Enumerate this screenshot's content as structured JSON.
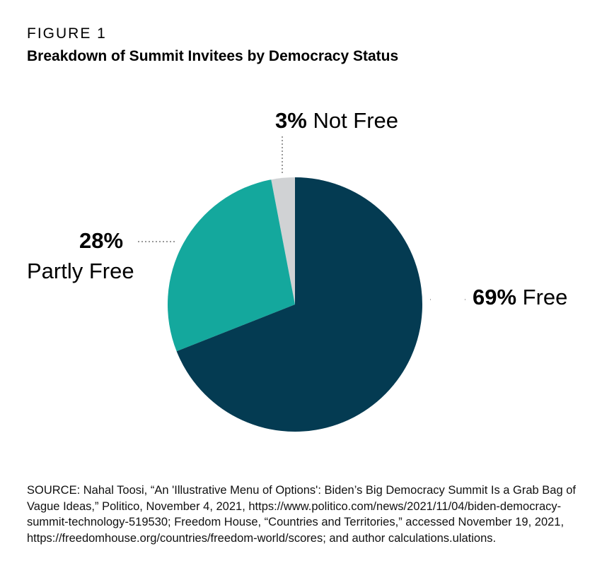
{
  "figure_label": "FIGURE 1",
  "title": "Breakdown of Summit Invitees by Democracy Status",
  "chart_data": {
    "type": "pie",
    "title": "Breakdown of Summit Invitees by Democracy Status",
    "slices": [
      {
        "label": "Free",
        "value": 69,
        "pct_text": "69%",
        "color": "#043b52"
      },
      {
        "label": "Partly Free",
        "value": 28,
        "pct_text": "28%",
        "color": "#14a89d"
      },
      {
        "label": "Not Free",
        "value": 3,
        "pct_text": "3%",
        "color": "#d0d2d4"
      }
    ]
  },
  "source": "SOURCE: Nahal Toosi, “An 'Illustrative Menu of Options': Biden’s Big Democracy Summit Is a Grab Bag of Vague Ideas,” Politico, November 4, 2021, https://www.politico.com/news/2021/11/04/biden-democracy-summit-technology-519530; Freedom House, “Countries and Territories,” accessed November 19, 2021, https://freedomhouse.org/countries/freedom-world/scores; and author calculations.ulations."
}
